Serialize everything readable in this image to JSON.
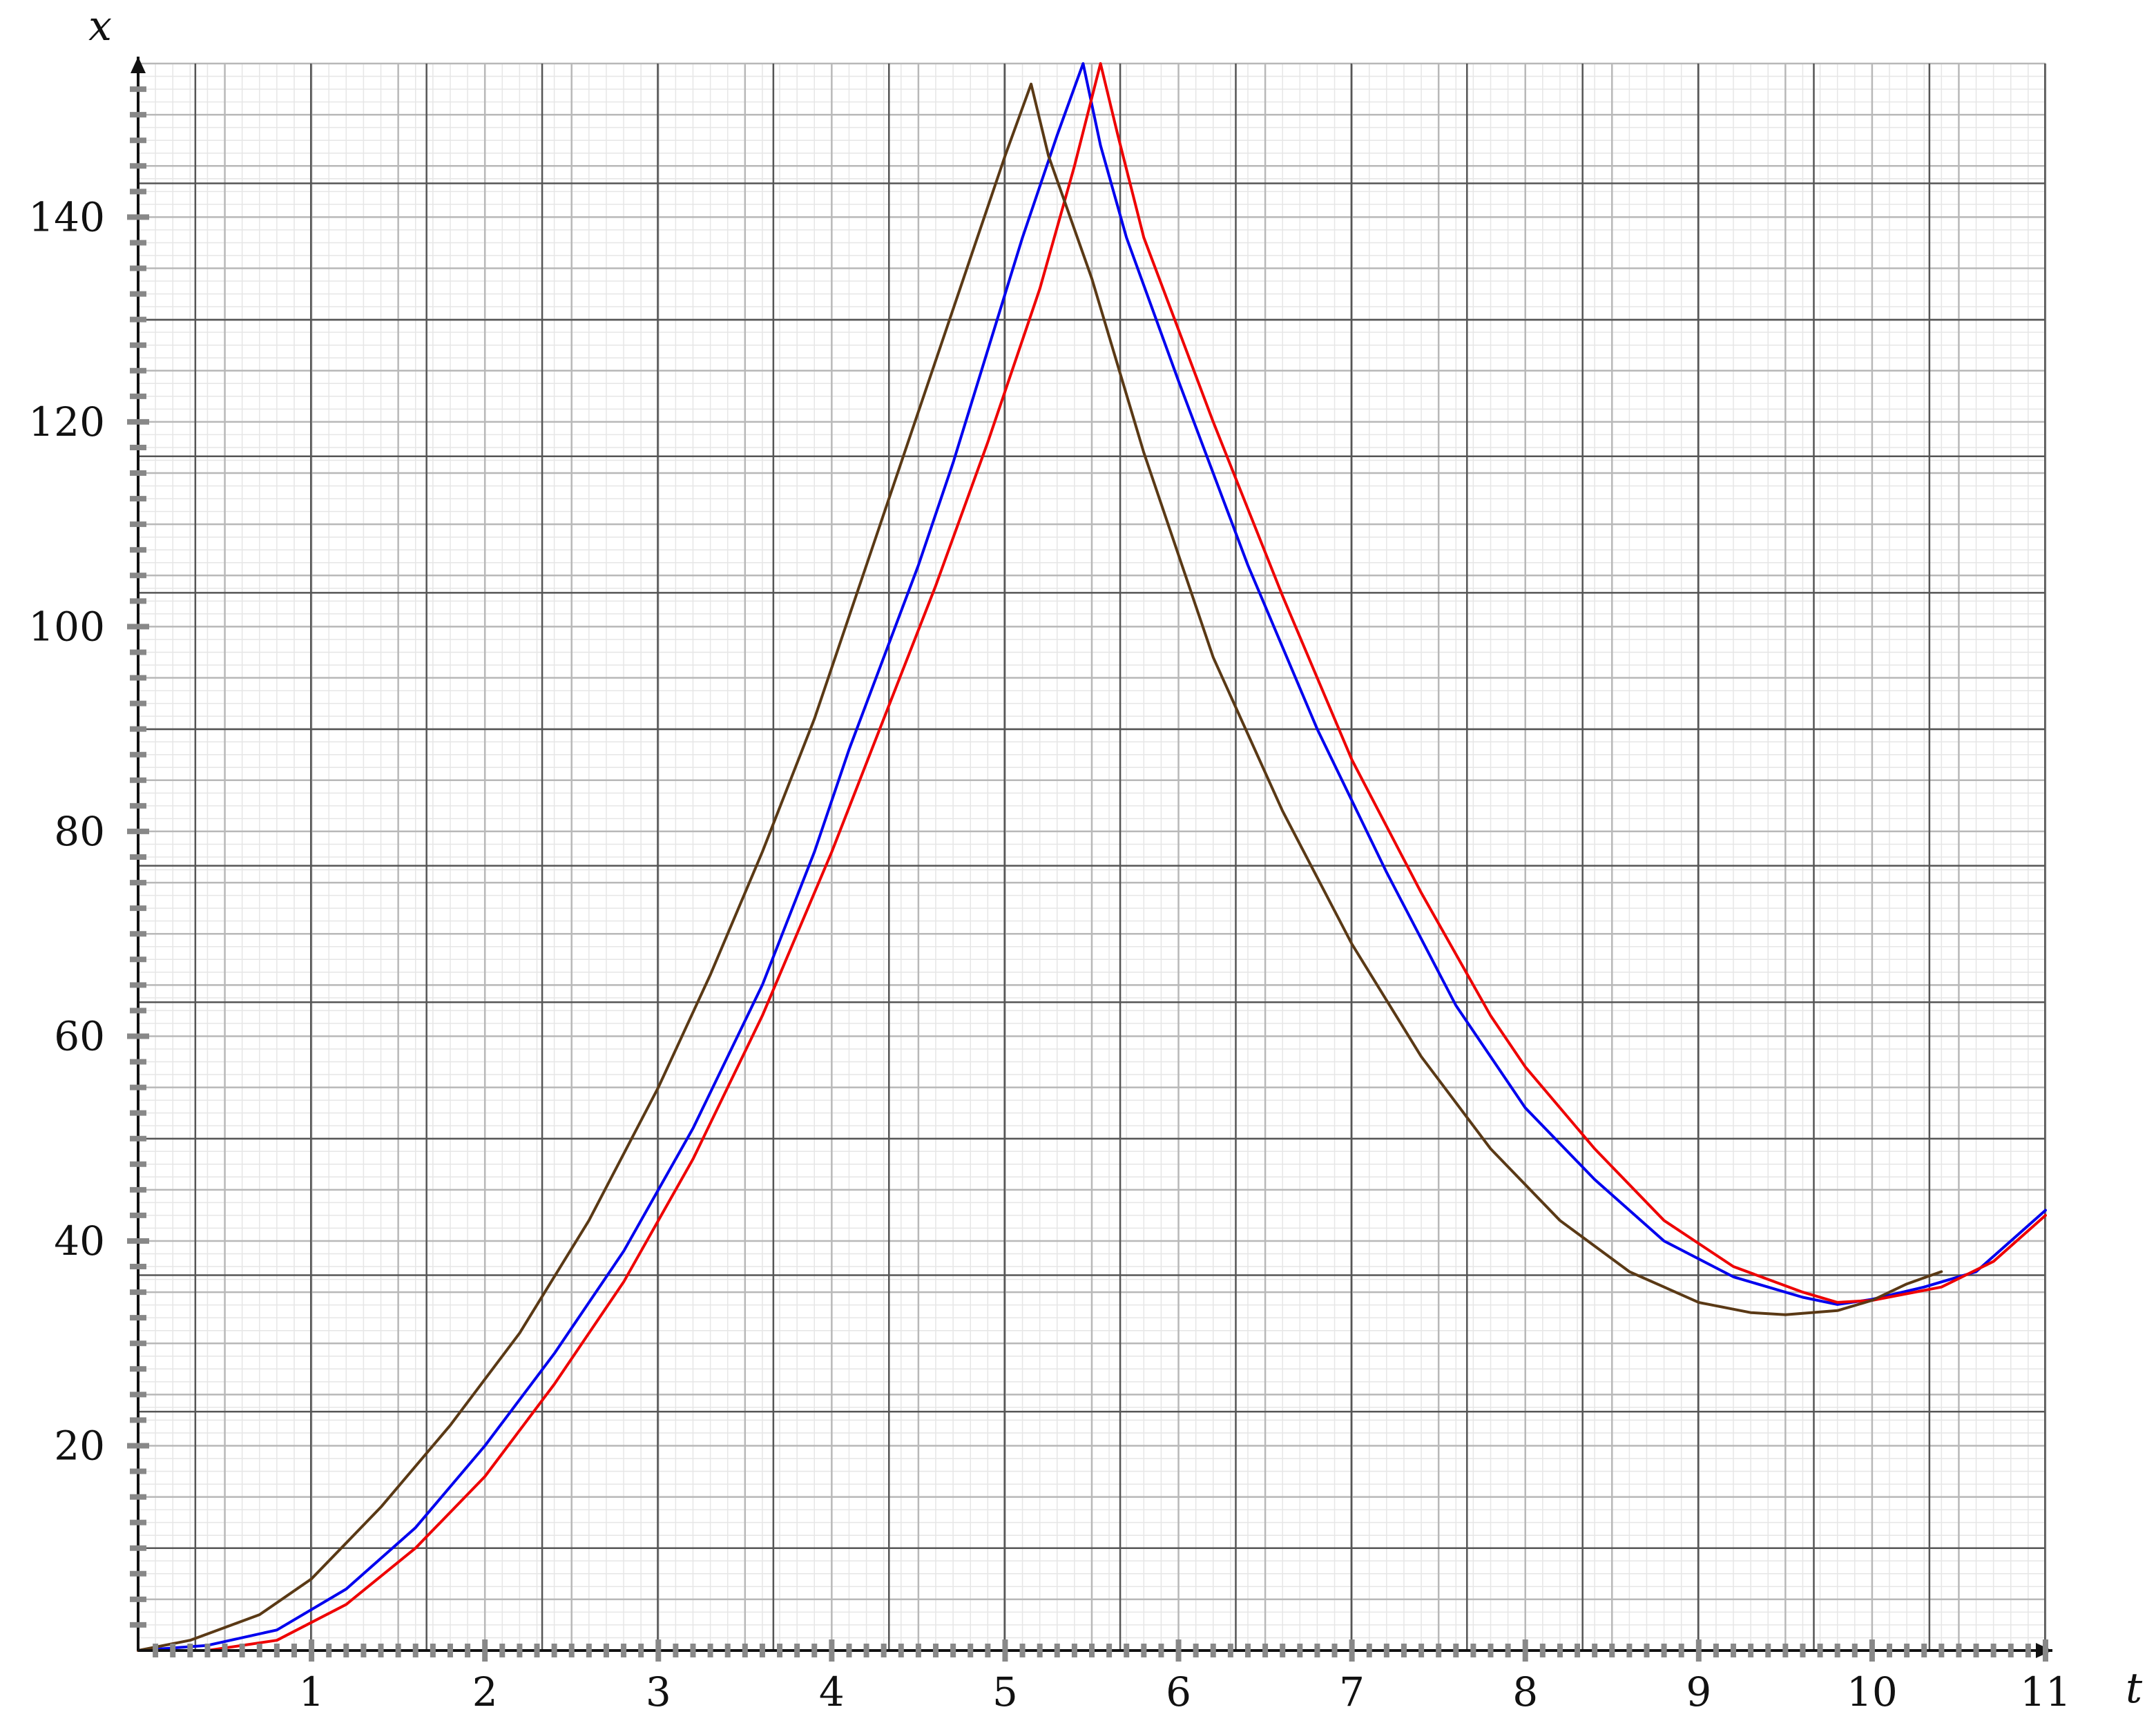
{
  "chart_data": {
    "type": "line",
    "title": "",
    "xlabel": "t",
    "ylabel": "x",
    "xlim": [
      0,
      11
    ],
    "ylim": [
      0,
      155
    ],
    "grid": true,
    "x_ticks": [
      1,
      2,
      3,
      4,
      5,
      6,
      7,
      8,
      9,
      10,
      11
    ],
    "x_tick_labels": [
      "1",
      "2",
      "3",
      "4",
      "5",
      "6",
      "7",
      "8",
      "9",
      "10",
      "11"
    ],
    "y_ticks": [
      20,
      40,
      60,
      80,
      100,
      120,
      140
    ],
    "y_tick_labels": [
      "20",
      "40",
      "60",
      "80",
      "100",
      "120",
      "140"
    ],
    "series": [
      {
        "color": "#0000ee",
        "x": [
          0,
          0.4,
          0.8,
          1.2,
          1.6,
          2.0,
          2.4,
          2.8,
          3.2,
          3.6,
          3.9,
          4.1,
          4.3,
          4.5,
          4.7,
          4.9,
          5.1,
          5.3,
          5.45,
          5.55,
          5.7,
          6.0,
          6.4,
          6.8,
          7.2,
          7.6,
          8.0,
          8.4,
          8.8,
          9.2,
          9.6,
          9.8,
          10.0,
          10.3,
          10.6,
          11.0
        ],
        "y": [
          0,
          0.5,
          2,
          6,
          12,
          20,
          29,
          39,
          51,
          65,
          78,
          88,
          97,
          106,
          116,
          127,
          138,
          148,
          155,
          147,
          138,
          124,
          106,
          90,
          76,
          63,
          53,
          46,
          40,
          36.5,
          34.5,
          33.8,
          34.3,
          35.5,
          37,
          43
        ]
      },
      {
        "color": "#ee0000",
        "x": [
          0,
          0.4,
          0.8,
          1.2,
          1.6,
          2.0,
          2.4,
          2.8,
          3.2,
          3.6,
          4.0,
          4.3,
          4.6,
          4.9,
          5.2,
          5.4,
          5.55,
          5.65,
          5.8,
          6.2,
          6.6,
          7.0,
          7.4,
          7.8,
          8.0,
          8.4,
          8.8,
          9.2,
          9.6,
          9.8,
          10.0,
          10.4,
          10.7,
          11.0
        ],
        "y": [
          0,
          0,
          1,
          4.5,
          10,
          17,
          26,
          36,
          48,
          62,
          78,
          91,
          104,
          118,
          133,
          145,
          155,
          148,
          138,
          120,
          103,
          87,
          74,
          62,
          57,
          49,
          42,
          37.5,
          35,
          34,
          34.2,
          35.5,
          38,
          42.5
        ]
      },
      {
        "color": "#5a3915",
        "x": [
          0,
          0.3,
          0.7,
          1.0,
          1.4,
          1.8,
          2.2,
          2.6,
          3.0,
          3.3,
          3.6,
          3.9,
          4.2,
          4.5,
          4.8,
          5.0,
          5.15,
          5.25,
          5.5,
          5.8,
          6.2,
          6.6,
          7.0,
          7.4,
          7.8,
          8.2,
          8.6,
          9.0,
          9.3,
          9.5,
          9.8,
          10.0,
          10.2,
          10.4
        ],
        "y": [
          0,
          1,
          3.5,
          7,
          14,
          22,
          31,
          42,
          55,
          66,
          78,
          91,
          106,
          121,
          136,
          146,
          153,
          146,
          134,
          117,
          97,
          82,
          69,
          58,
          49,
          42,
          37,
          34,
          33,
          32.8,
          33.2,
          34.2,
          35.8,
          37
        ]
      }
    ]
  }
}
